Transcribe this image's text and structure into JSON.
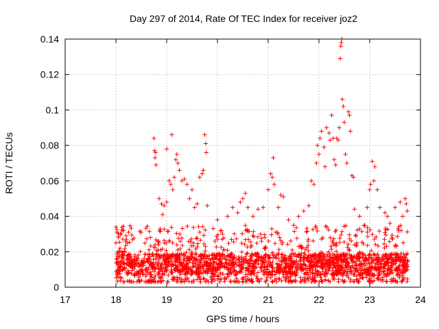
{
  "chart_data": {
    "type": "scatter",
    "title": "Day 297 of 2014, Rate Of TEC Index for receiver joz2",
    "xlabel": "GPS time / hours",
    "ylabel": "ROTI / TECUs",
    "xlim": [
      17,
      24
    ],
    "ylim": [
      0,
      0.14
    ],
    "x_ticks": [
      17,
      18,
      19,
      20,
      21,
      22,
      23,
      24
    ],
    "y_ticks": [
      0,
      0.02,
      0.04,
      0.06,
      0.08,
      0.1,
      0.12,
      0.14
    ],
    "x_tick_labels": [
      "17",
      "18",
      "19",
      "20",
      "21",
      "22",
      "23",
      "24"
    ],
    "y_tick_labels": [
      "0",
      "0.02",
      "0.04",
      "0.06",
      "0.08",
      "0.1",
      "0.12",
      "0.14"
    ],
    "grid": true,
    "marker": "+",
    "marker_color": "#ff0000",
    "series": [
      {
        "name": "ROTI",
        "points": [
          [
            18.0,
            0.034
          ],
          [
            18.02,
            0.031
          ],
          [
            18.05,
            0.028
          ],
          [
            18.1,
            0.03
          ],
          [
            18.15,
            0.032
          ],
          [
            18.2,
            0.029
          ],
          [
            18.25,
            0.031
          ],
          [
            18.0,
            0.025
          ],
          [
            18.08,
            0.022
          ],
          [
            18.12,
            0.02
          ],
          [
            18.75,
            0.084
          ],
          [
            18.76,
            0.077
          ],
          [
            18.78,
            0.076
          ],
          [
            18.77,
            0.073
          ],
          [
            18.79,
            0.069
          ],
          [
            18.85,
            0.05
          ],
          [
            18.9,
            0.047
          ],
          [
            18.95,
            0.046
          ],
          [
            19.0,
            0.048
          ],
          [
            18.92,
            0.041
          ],
          [
            19.0,
            0.078
          ],
          [
            19.05,
            0.06
          ],
          [
            19.08,
            0.058
          ],
          [
            19.1,
            0.086
          ],
          [
            19.12,
            0.055
          ],
          [
            19.15,
            0.062
          ],
          [
            19.18,
            0.072
          ],
          [
            19.2,
            0.075
          ],
          [
            19.22,
            0.07
          ],
          [
            19.25,
            0.066
          ],
          [
            19.3,
            0.06
          ],
          [
            19.35,
            0.061
          ],
          [
            19.4,
            0.058
          ],
          [
            19.45,
            0.05
          ],
          [
            19.5,
            0.055
          ],
          [
            19.55,
            0.045
          ],
          [
            19.6,
            0.047
          ],
          [
            19.65,
            0.062
          ],
          [
            19.7,
            0.064
          ],
          [
            19.72,
            0.066
          ],
          [
            19.75,
            0.086
          ],
          [
            19.77,
            0.081
          ],
          [
            19.78,
            0.076
          ],
          [
            19.8,
            0.046
          ],
          [
            20.0,
            0.038
          ],
          [
            20.1,
            0.03
          ],
          [
            20.2,
            0.04
          ],
          [
            20.3,
            0.045
          ],
          [
            20.4,
            0.042
          ],
          [
            20.45,
            0.048
          ],
          [
            20.5,
            0.05
          ],
          [
            20.55,
            0.053
          ],
          [
            20.6,
            0.045
          ],
          [
            20.7,
            0.04
          ],
          [
            20.8,
            0.044
          ],
          [
            20.9,
            0.045
          ],
          [
            21.0,
            0.055
          ],
          [
            21.05,
            0.064
          ],
          [
            21.08,
            0.062
          ],
          [
            21.1,
            0.073
          ],
          [
            21.12,
            0.058
          ],
          [
            21.2,
            0.045
          ],
          [
            21.25,
            0.052
          ],
          [
            21.3,
            0.051
          ],
          [
            21.4,
            0.038
          ],
          [
            21.5,
            0.035
          ],
          [
            21.6,
            0.04
          ],
          [
            21.7,
            0.043
          ],
          [
            21.8,
            0.046
          ],
          [
            21.85,
            0.06
          ],
          [
            21.9,
            0.058
          ],
          [
            21.95,
            0.07
          ],
          [
            21.97,
            0.08
          ],
          [
            22.0,
            0.075
          ],
          [
            22.02,
            0.084
          ],
          [
            22.05,
            0.088
          ],
          [
            22.1,
            0.079
          ],
          [
            22.12,
            0.068
          ],
          [
            22.15,
            0.09
          ],
          [
            22.2,
            0.087
          ],
          [
            22.22,
            0.083
          ],
          [
            22.25,
            0.097
          ],
          [
            22.28,
            0.084
          ],
          [
            22.3,
            0.072
          ],
          [
            22.33,
            0.069
          ],
          [
            22.35,
            0.084
          ],
          [
            22.38,
            0.083
          ],
          [
            22.4,
            0.09
          ],
          [
            22.42,
            0.129
          ],
          [
            22.43,
            0.136
          ],
          [
            22.44,
            0.138
          ],
          [
            22.45,
            0.14
          ],
          [
            22.46,
            0.106
          ],
          [
            22.48,
            0.102
          ],
          [
            22.5,
            0.093
          ],
          [
            22.52,
            0.075
          ],
          [
            22.55,
            0.07
          ],
          [
            22.58,
            0.099
          ],
          [
            22.6,
            0.097
          ],
          [
            22.62,
            0.088
          ],
          [
            22.65,
            0.063
          ],
          [
            22.68,
            0.062
          ],
          [
            22.7,
            0.044
          ],
          [
            22.8,
            0.04
          ],
          [
            22.9,
            0.035
          ],
          [
            22.95,
            0.045
          ],
          [
            23.0,
            0.055
          ],
          [
            23.02,
            0.058
          ],
          [
            23.05,
            0.071
          ],
          [
            23.08,
            0.06
          ],
          [
            23.1,
            0.068
          ],
          [
            23.15,
            0.055
          ],
          [
            23.2,
            0.045
          ],
          [
            23.3,
            0.042
          ],
          [
            23.35,
            0.04
          ],
          [
            23.4,
            0.036
          ],
          [
            23.5,
            0.045
          ],
          [
            23.6,
            0.048
          ],
          [
            23.65,
            0.04
          ],
          [
            23.7,
            0.05
          ],
          [
            23.72,
            0.047
          ],
          [
            23.74,
            0.043
          ]
        ],
        "dense_band": {
          "x_range": [
            18.0,
            23.75
          ],
          "y_low": 0.003,
          "y_high": 0.035,
          "typical_y": 0.012,
          "note": "thousands of points forming a dense band between 0.005 and 0.03 across the observation window"
        }
      }
    ]
  }
}
